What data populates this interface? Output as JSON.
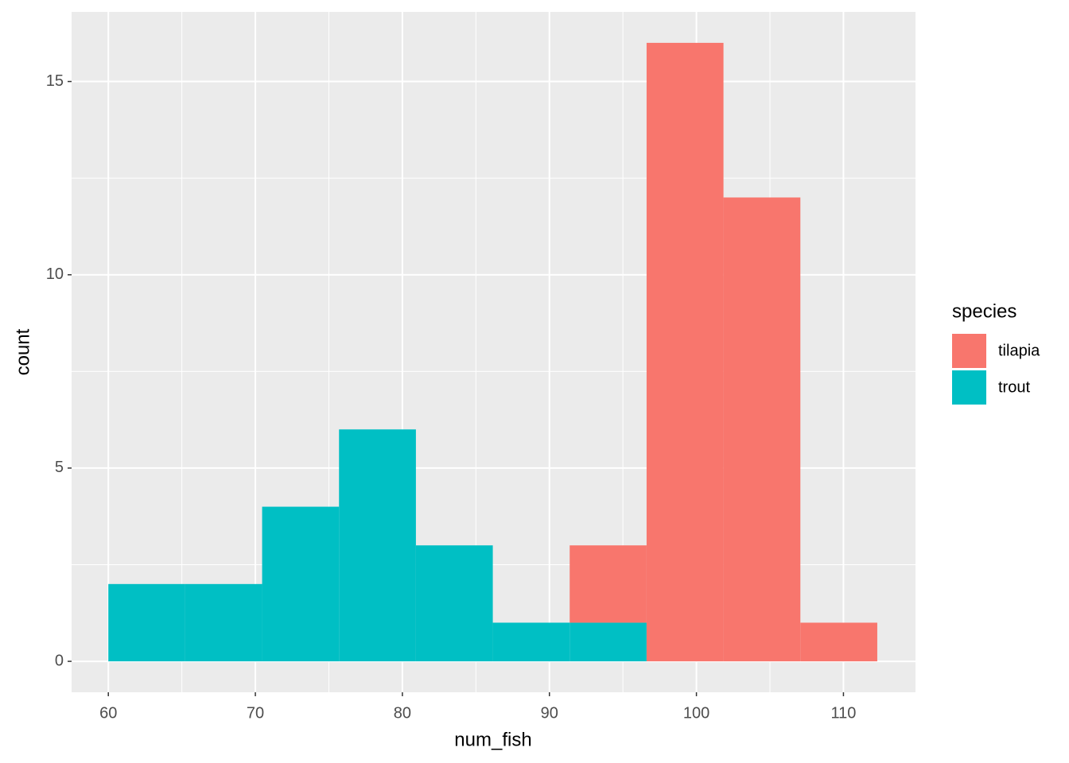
{
  "chart_data": {
    "type": "histogram",
    "stacked": true,
    "x_label": "num_fish",
    "y_label": "count",
    "bins": [
      60,
      65.23,
      70.46,
      75.69,
      80.92,
      86.15,
      91.38,
      96.61,
      101.84,
      107.07,
      112.3
    ],
    "series": [
      {
        "name": "tilapia",
        "color": "#f8766d",
        "values": [
          0,
          0,
          0,
          0,
          0,
          0,
          2,
          16,
          12,
          1
        ]
      },
      {
        "name": "trout",
        "color": "#00bfc4",
        "values": [
          2,
          2,
          4,
          6,
          3,
          1,
          1,
          0,
          0,
          0
        ]
      }
    ],
    "legend_title": "species",
    "legend_position": "right",
    "xlim": [
      57.5,
      114.9
    ],
    "xticks": [
      60,
      70,
      80,
      90,
      100,
      110
    ],
    "ylim": [
      -0.8,
      16.8
    ],
    "yticks": [
      0,
      5,
      10,
      15
    ],
    "grid": true
  }
}
